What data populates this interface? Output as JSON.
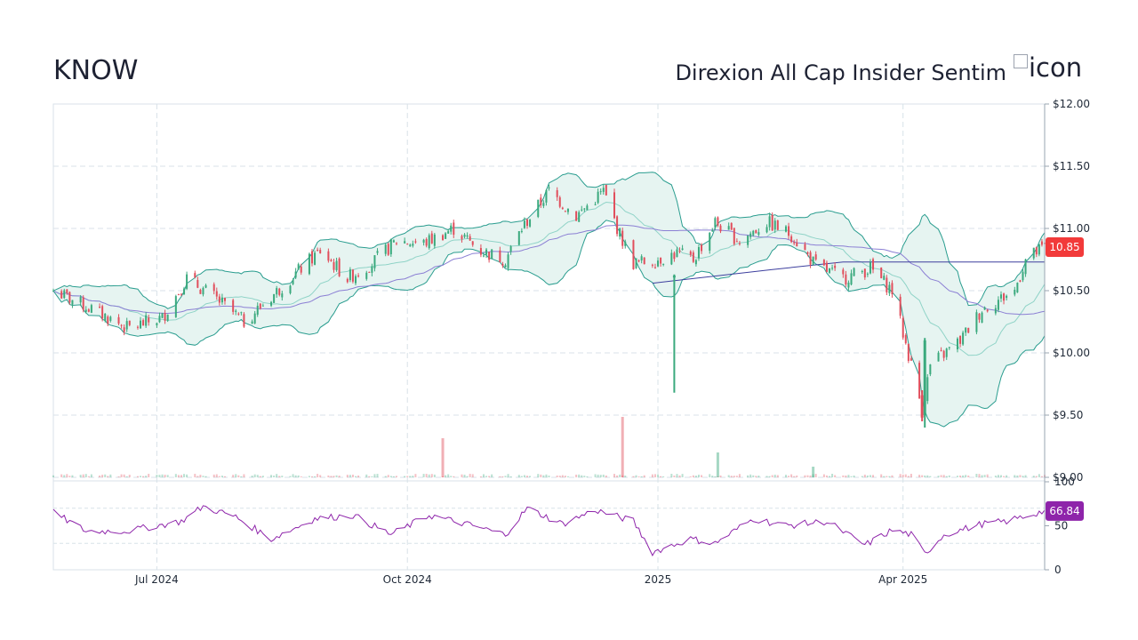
{
  "header": {
    "ticker": "KNOW",
    "fund_name": "Direxion All Cap Insider Sentim",
    "logo_alt": "icon"
  },
  "colors": {
    "up": "#3aa97d",
    "down": "#e14e5c",
    "band_fill": "#e6f4f1",
    "band_line": "#2a9d8f",
    "sma20": "#8fd3c7",
    "sma50": "#8b7fd4",
    "sma200": "#3d3f9e",
    "rsi": "#8e24aa",
    "price_badge": "#f23a3a",
    "rsi_badge": "#8e24aa",
    "grid": "#d8e2e8"
  },
  "chart_data": [
    {
      "type": "candlestick",
      "title": "",
      "x_range": [
        "2024-05-24",
        "2025-05-23"
      ],
      "ylim": [
        9.0,
        12.0
      ],
      "y_ticks": [
        "$12.00",
        "$11.50",
        "$11.00",
        "$10.50",
        "$10.00",
        "$9.50",
        "$9.00"
      ],
      "x_ticks": [
        "Jul 2024",
        "Oct 2024",
        "2025",
        "Apr 2025"
      ],
      "grid": true,
      "last_price_label": "10.85",
      "last_price": 10.85,
      "indicators": [
        "Bollinger Bands (20)",
        "SMA 20",
        "SMA 50",
        "SMA 200",
        "Volume"
      ],
      "price_path": [
        [
          "2024-05-24",
          10.5
        ],
        [
          "2024-06-10",
          10.32
        ],
        [
          "2024-06-20",
          10.2
        ],
        [
          "2024-07-03",
          10.28
        ],
        [
          "2024-07-12",
          10.6
        ],
        [
          "2024-07-22",
          10.45
        ],
        [
          "2024-08-02",
          10.25
        ],
        [
          "2024-08-12",
          10.45
        ],
        [
          "2024-08-23",
          10.68
        ],
        [
          "2024-08-30",
          10.82
        ],
        [
          "2024-09-09",
          10.6
        ],
        [
          "2024-09-18",
          10.72
        ],
        [
          "2024-09-27",
          10.9
        ],
        [
          "2024-10-07",
          10.88
        ],
        [
          "2024-10-18",
          11.0
        ],
        [
          "2024-10-28",
          10.82
        ],
        [
          "2024-11-06",
          10.75
        ],
        [
          "2024-11-12",
          11.0
        ],
        [
          "2024-11-22",
          11.3
        ],
        [
          "2024-12-02",
          11.1
        ],
        [
          "2024-12-12",
          11.3
        ],
        [
          "2024-12-18",
          10.95
        ],
        [
          "2024-12-23",
          10.72
        ],
        [
          "2024-12-30",
          10.74
        ],
        [
          "2025-01-08",
          10.8
        ],
        [
          "2025-01-14",
          10.75
        ],
        [
          "2025-01-22",
          11.05
        ],
        [
          "2025-01-31",
          10.9
        ],
        [
          "2025-02-10",
          11.05
        ],
        [
          "2025-02-19",
          10.95
        ],
        [
          "2025-02-28",
          10.7
        ],
        [
          "2025-03-10",
          10.6
        ],
        [
          "2025-03-20",
          10.68
        ],
        [
          "2025-03-28",
          10.5
        ],
        [
          "2025-04-04",
          9.9
        ],
        [
          "2025-04-08",
          9.55
        ],
        [
          "2025-04-11",
          9.9
        ],
        [
          "2025-04-22",
          10.1
        ],
        [
          "2025-04-30",
          10.35
        ],
        [
          "2025-05-12",
          10.5
        ],
        [
          "2025-05-16",
          10.75
        ],
        [
          "2025-05-23",
          10.85
        ]
      ],
      "sma200_path": [
        [
          "2024-12-30",
          10.56
        ],
        [
          "2025-02-12",
          10.67
        ],
        [
          "2025-03-10",
          10.73
        ],
        [
          "2025-05-23",
          10.73
        ]
      ],
      "big_wicks": [
        {
          "date": "2025-01-07",
          "open": 10.62,
          "close": 10.62,
          "low": 9.68,
          "high": 10.63,
          "dir": "up"
        },
        {
          "date": "2025-04-08",
          "open": 9.66,
          "close": 9.48,
          "low": 9.45,
          "high": 9.7,
          "dir": "down"
        },
        {
          "date": "2025-04-09",
          "open": 9.5,
          "close": 10.1,
          "low": 9.4,
          "high": 10.12,
          "dir": "up"
        }
      ],
      "volume_spikes": [
        {
          "date": "2024-10-14",
          "value": 0.55,
          "dir": "down"
        },
        {
          "date": "2024-12-19",
          "value": 0.85,
          "dir": "down"
        },
        {
          "date": "2025-01-23",
          "value": 0.35,
          "dir": "up"
        },
        {
          "date": "2025-02-27",
          "value": 0.15,
          "dir": "up"
        }
      ]
    },
    {
      "type": "line",
      "title": "",
      "ylim": [
        0,
        100
      ],
      "y_ticks": [
        "100",
        "50",
        "0"
      ],
      "reference_lines": [
        70,
        30
      ],
      "last_value_label": "66.84",
      "last_value": 66.84,
      "series_path": [
        [
          "2024-05-24",
          65
        ],
        [
          "2024-06-05",
          44
        ],
        [
          "2024-06-20",
          44
        ],
        [
          "2024-07-10",
          55
        ],
        [
          "2024-07-18",
          72
        ],
        [
          "2024-07-30",
          60
        ],
        [
          "2024-08-12",
          35
        ],
        [
          "2024-08-28",
          58
        ],
        [
          "2024-09-11",
          62
        ],
        [
          "2024-09-25",
          40
        ],
        [
          "2024-10-09",
          62
        ],
        [
          "2024-10-25",
          50
        ],
        [
          "2024-11-06",
          40
        ],
        [
          "2024-11-14",
          70
        ],
        [
          "2024-11-27",
          52
        ],
        [
          "2024-12-09",
          68
        ],
        [
          "2024-12-23",
          55
        ],
        [
          "2024-12-30",
          20
        ],
        [
          "2025-01-13",
          35
        ],
        [
          "2025-01-22",
          30
        ],
        [
          "2025-02-05",
          58
        ],
        [
          "2025-02-17",
          50
        ],
        [
          "2025-03-04",
          55
        ],
        [
          "2025-03-18",
          28
        ],
        [
          "2025-03-28",
          45
        ],
        [
          "2025-04-04",
          40
        ],
        [
          "2025-04-09",
          18
        ],
        [
          "2025-04-16",
          40
        ],
        [
          "2025-04-30",
          52
        ],
        [
          "2025-05-09",
          55
        ],
        [
          "2025-05-23",
          66.84
        ]
      ]
    }
  ]
}
